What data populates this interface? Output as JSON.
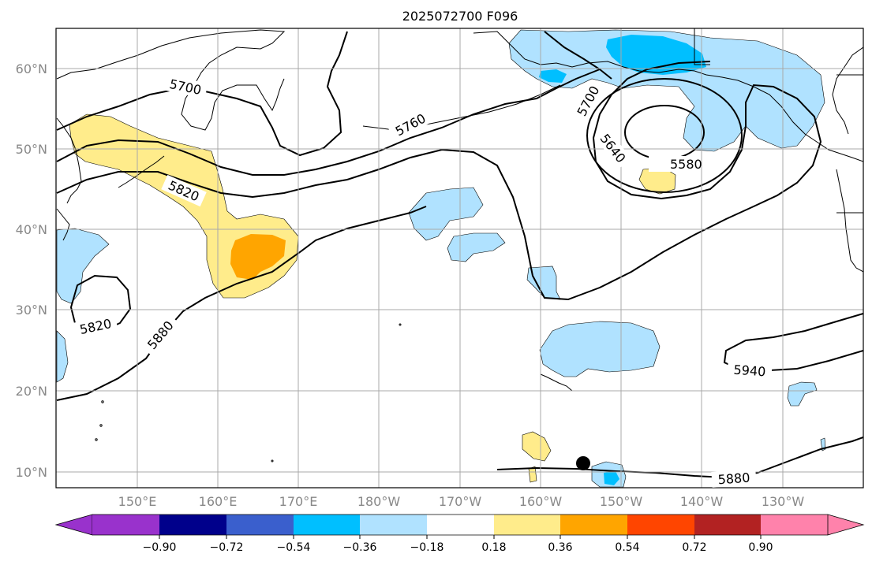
{
  "title": "2025072700 F096",
  "lat_labels": [
    "10°N",
    "20°N",
    "30°N",
    "40°N",
    "50°N",
    "60°N"
  ],
  "lon_labels": [
    "150°E",
    "160°E",
    "170°E",
    "180°W",
    "170°W",
    "160°W",
    "150°W",
    "140°W",
    "130°W"
  ],
  "contour_labels": [
    "5700",
    "5760",
    "5700",
    "5640",
    "5580",
    "5820",
    "5820",
    "5880",
    "5940",
    "5880"
  ],
  "colorbar": {
    "ticks": [
      "−0.90",
      "−0.72",
      "−0.54",
      "−0.36",
      "−0.18",
      "0.18",
      "0.36",
      "0.54",
      "0.72",
      "0.90"
    ],
    "colors": [
      "#9932CC",
      "#00008B",
      "#3A5FCD",
      "#00BFFF",
      "#B0E2FF",
      "#FFFFFF",
      "#FFEC8B",
      "#FFA500",
      "#FF4500",
      "#B22222",
      "#FF82AB"
    ]
  },
  "colors": {
    "light_blue": "#B0E2FF",
    "deep_sky": "#00BFFF",
    "light_yellow": "#FFEC8B",
    "orange": "#FFA500"
  }
}
